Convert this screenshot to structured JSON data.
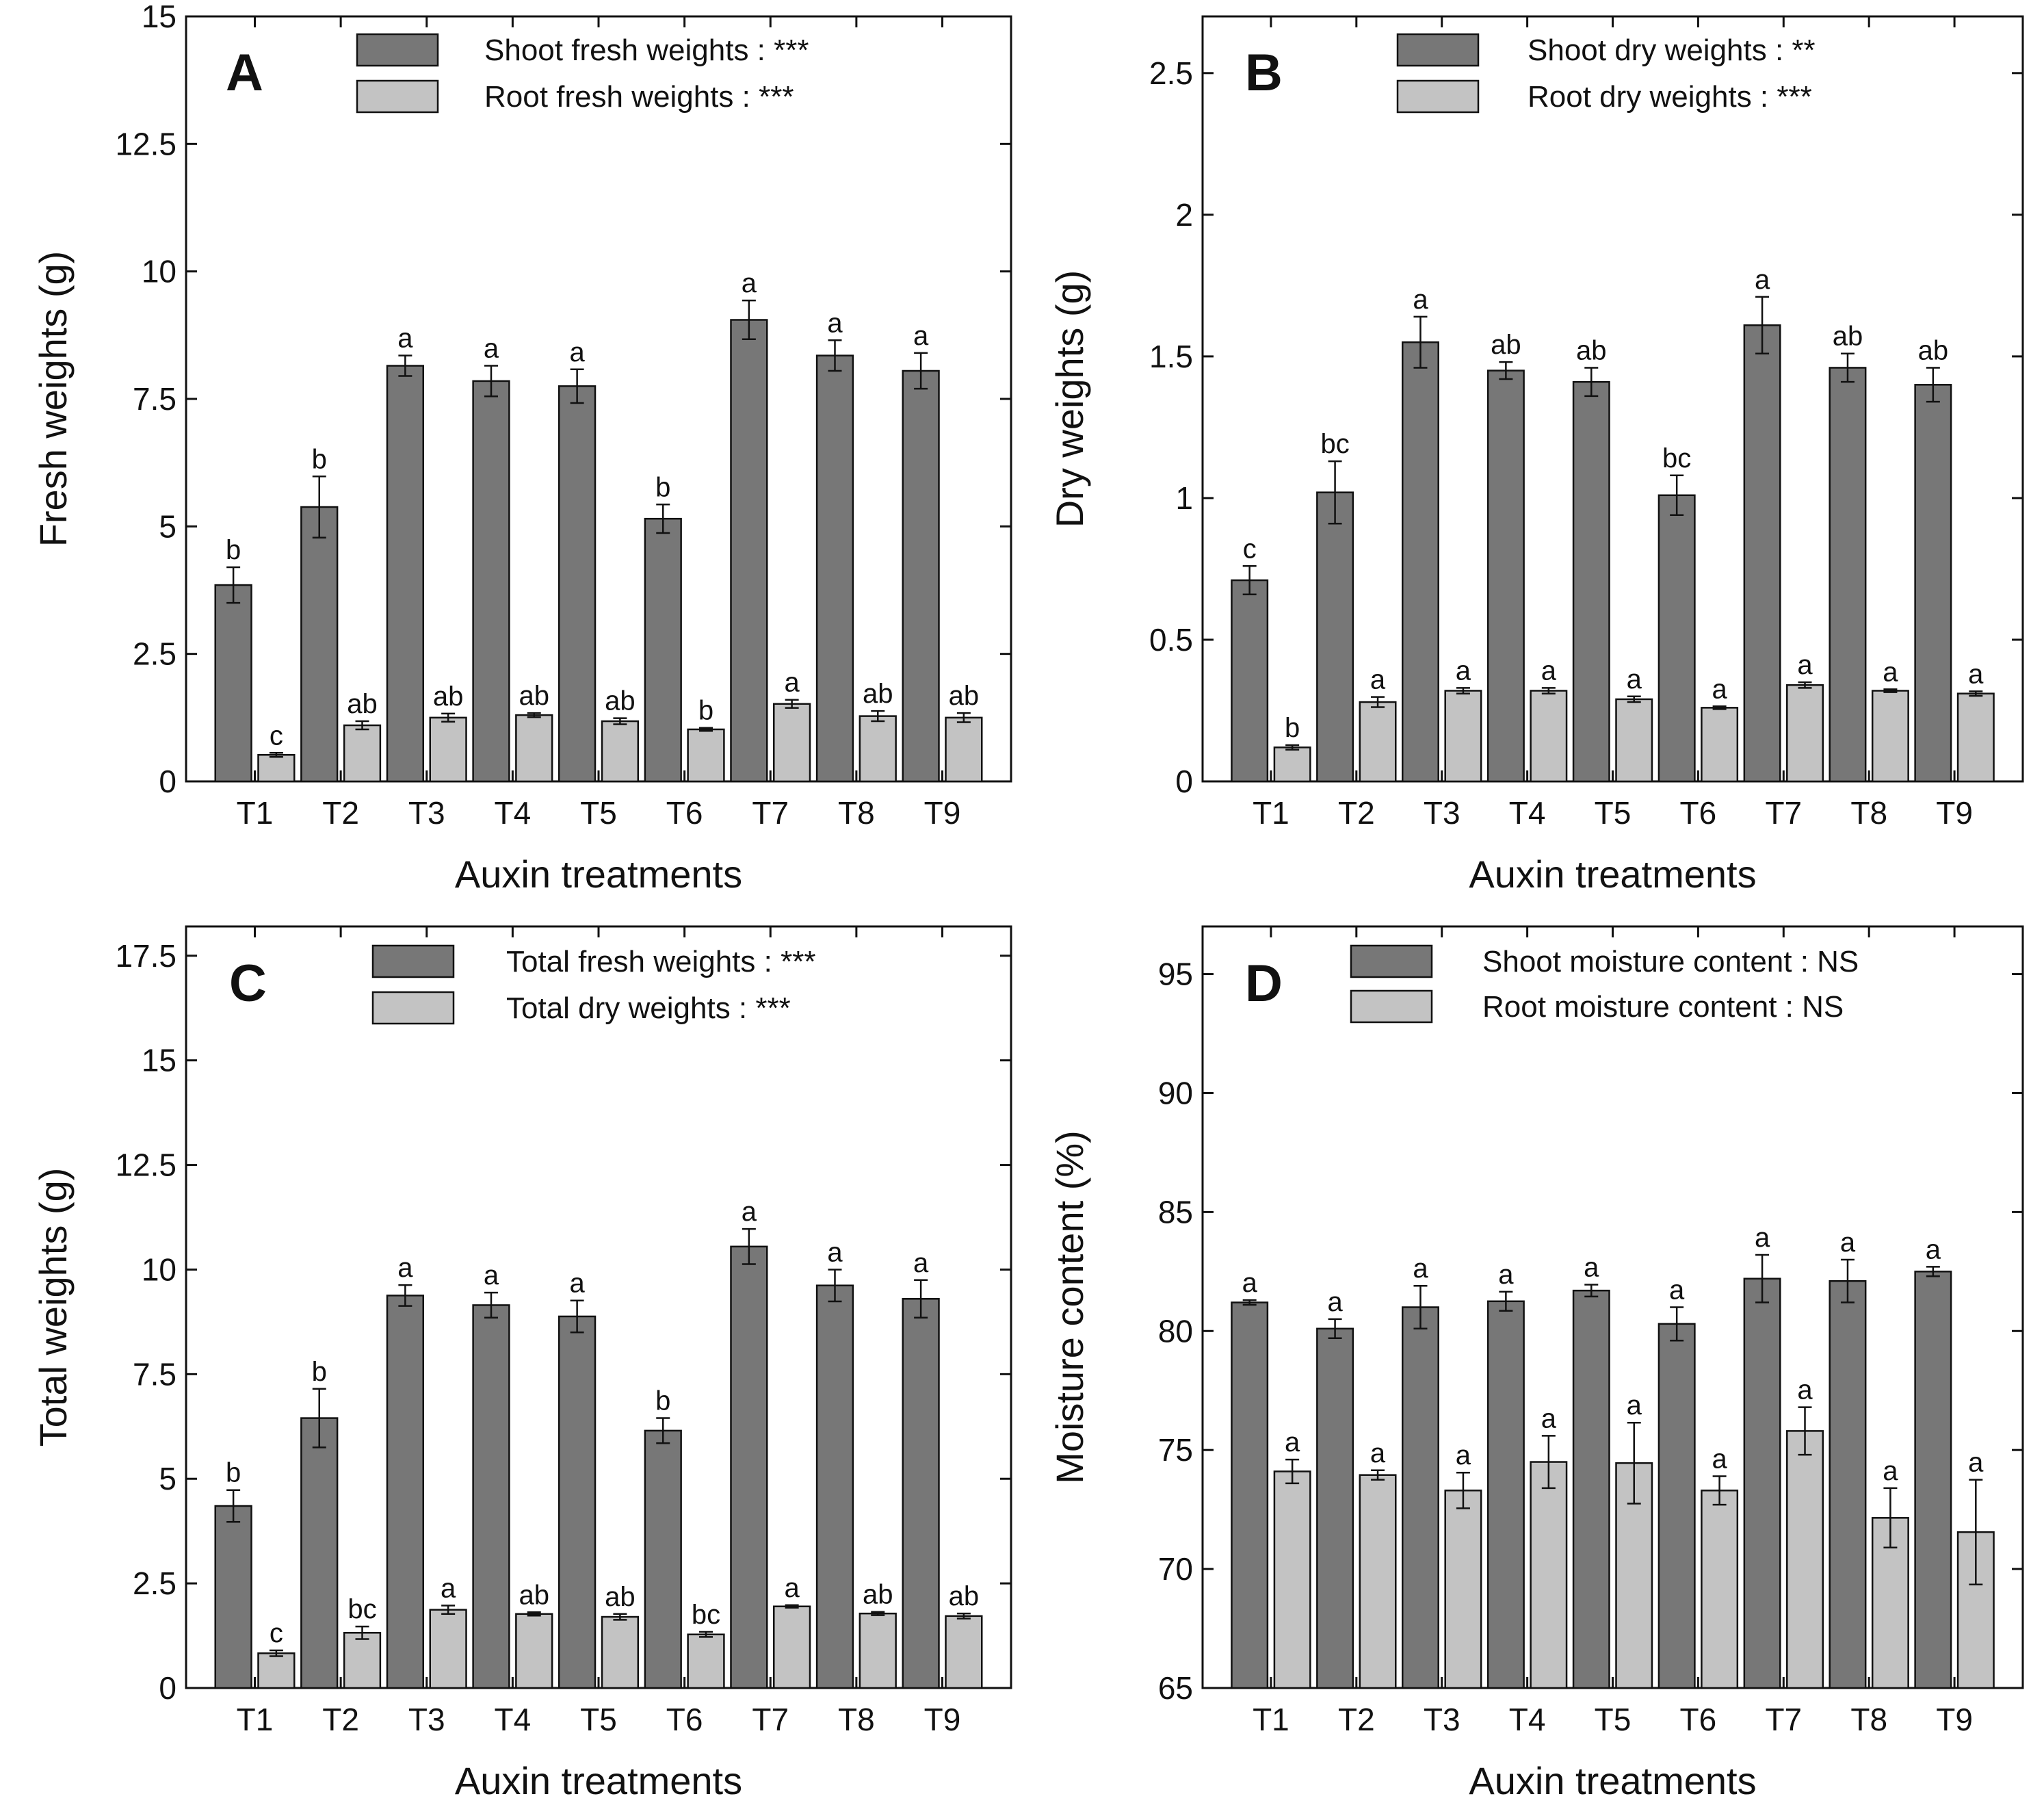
{
  "colors": {
    "dark": "#777777",
    "light": "#c3c3c3",
    "stroke": "#111111"
  },
  "chart_data": [
    {
      "type": "bar",
      "panel": "A",
      "categories": [
        "T1",
        "T2",
        "T3",
        "T4",
        "T5",
        "T6",
        "T7",
        "T8",
        "T9"
      ],
      "xlabel": "Auxin treatments",
      "ylabel": "Fresh weights (g)",
      "ylim": [
        0,
        15
      ],
      "yticks": [
        "0",
        "2.5",
        "5",
        "7.5",
        "10",
        "12.5",
        "15"
      ],
      "legend_position": "top",
      "series": [
        {
          "name": "Shoot fresh weights : ***",
          "color": "dark",
          "values": [
            3.85,
            5.38,
            8.15,
            7.85,
            7.75,
            5.15,
            9.05,
            8.35,
            8.05
          ],
          "errors": [
            0.35,
            0.6,
            0.2,
            0.3,
            0.33,
            0.28,
            0.38,
            0.3,
            0.35
          ],
          "letters": [
            "b",
            "b",
            "a",
            "a",
            "a",
            "b",
            "a",
            "a",
            "a"
          ]
        },
        {
          "name": "Root fresh weights : ***",
          "color": "light",
          "values": [
            0.52,
            1.1,
            1.25,
            1.3,
            1.18,
            1.02,
            1.52,
            1.28,
            1.25
          ],
          "errors": [
            0.04,
            0.08,
            0.08,
            0.04,
            0.06,
            0.03,
            0.08,
            0.1,
            0.09
          ],
          "letters": [
            "c",
            "ab",
            "ab",
            "ab",
            "ab",
            "b",
            "a",
            "ab",
            "ab"
          ]
        }
      ]
    },
    {
      "type": "bar",
      "panel": "B",
      "categories": [
        "T1",
        "T2",
        "T3",
        "T4",
        "T5",
        "T6",
        "T7",
        "T8",
        "T9"
      ],
      "xlabel": "Auxin treatments",
      "ylabel": "Dry weights (g)",
      "ylim": [
        0,
        2.7
      ],
      "yticks": [
        "0",
        "0.5",
        "1",
        "1.5",
        "2",
        "2.5"
      ],
      "legend_position": "top",
      "series": [
        {
          "name": "Shoot dry weights : **",
          "color": "dark",
          "values": [
            0.71,
            1.02,
            1.55,
            1.45,
            1.41,
            1.01,
            1.61,
            1.46,
            1.4
          ],
          "errors": [
            0.05,
            0.11,
            0.09,
            0.03,
            0.05,
            0.07,
            0.1,
            0.05,
            0.06
          ],
          "letters": [
            "c",
            "bc",
            "a",
            "ab",
            "ab",
            "bc",
            "a",
            "ab",
            "ab"
          ]
        },
        {
          "name": "Root  dry weights : ***",
          "color": "light",
          "values": [
            0.12,
            0.28,
            0.32,
            0.32,
            0.29,
            0.26,
            0.34,
            0.32,
            0.31
          ],
          "errors": [
            0.008,
            0.018,
            0.01,
            0.01,
            0.01,
            0.005,
            0.01,
            0.005,
            0.008
          ],
          "letters": [
            "b",
            "a",
            "a",
            "a",
            "a",
            "a",
            "a",
            "a",
            "a"
          ]
        }
      ]
    },
    {
      "type": "bar",
      "panel": "C",
      "categories": [
        "T1",
        "T2",
        "T3",
        "T4",
        "T5",
        "T6",
        "T7",
        "T8",
        "T9"
      ],
      "xlabel": "Auxin treatments",
      "ylabel": "Total weights (g)",
      "ylim": [
        0,
        18.2
      ],
      "yticks": [
        "0",
        "2.5",
        "5",
        "7.5",
        "10",
        "12.5",
        "15",
        "17.5"
      ],
      "legend_position": "top",
      "series": [
        {
          "name": "Total fresh weights : ***",
          "color": "dark",
          "values": [
            4.35,
            6.45,
            9.38,
            9.15,
            8.88,
            6.15,
            10.55,
            9.62,
            9.3
          ],
          "errors": [
            0.38,
            0.7,
            0.25,
            0.3,
            0.38,
            0.3,
            0.42,
            0.38,
            0.45
          ],
          "letters": [
            "b",
            "b",
            "a",
            "a",
            "a",
            "b",
            "a",
            "a",
            "a"
          ]
        },
        {
          "name": "Total dry weights : ***",
          "color": "light",
          "values": [
            0.83,
            1.32,
            1.87,
            1.77,
            1.7,
            1.28,
            1.95,
            1.78,
            1.72
          ],
          "errors": [
            0.07,
            0.15,
            0.1,
            0.04,
            0.07,
            0.06,
            0.03,
            0.04,
            0.06
          ],
          "letters": [
            "c",
            "bc",
            "a",
            "ab",
            "ab",
            "bc",
            "a",
            "ab",
            "ab"
          ]
        }
      ]
    },
    {
      "type": "bar",
      "panel": "D",
      "categories": [
        "T1",
        "T2",
        "T3",
        "T4",
        "T5",
        "T6",
        "T7",
        "T8",
        "T9"
      ],
      "xlabel": "Auxin treatments",
      "ylabel": "Moisture content (%)",
      "ylim": [
        65,
        97
      ],
      "yticks": [
        "65",
        "70",
        "75",
        "80",
        "85",
        "90",
        "95"
      ],
      "legend_position": "top",
      "series": [
        {
          "name": "Shoot moisture content : NS",
          "color": "dark",
          "values": [
            81.2,
            80.1,
            81.0,
            81.25,
            81.7,
            80.3,
            82.2,
            82.1,
            82.5
          ],
          "errors": [
            0.1,
            0.4,
            0.9,
            0.4,
            0.25,
            0.7,
            1.0,
            0.9,
            0.2
          ],
          "letters": [
            "a",
            "a",
            "a",
            "a",
            "a",
            "a",
            "a",
            "a",
            "a"
          ]
        },
        {
          "name": "Root moisture content : NS",
          "color": "light",
          "values": [
            74.1,
            73.95,
            73.3,
            74.5,
            74.45,
            73.3,
            75.8,
            72.15,
            71.55
          ],
          "errors": [
            0.5,
            0.2,
            0.75,
            1.1,
            1.7,
            0.6,
            1.0,
            1.25,
            2.2
          ],
          "letters": [
            "a",
            "a",
            "a",
            "a",
            "a",
            "a",
            "a",
            "a",
            "a"
          ]
        }
      ]
    }
  ]
}
